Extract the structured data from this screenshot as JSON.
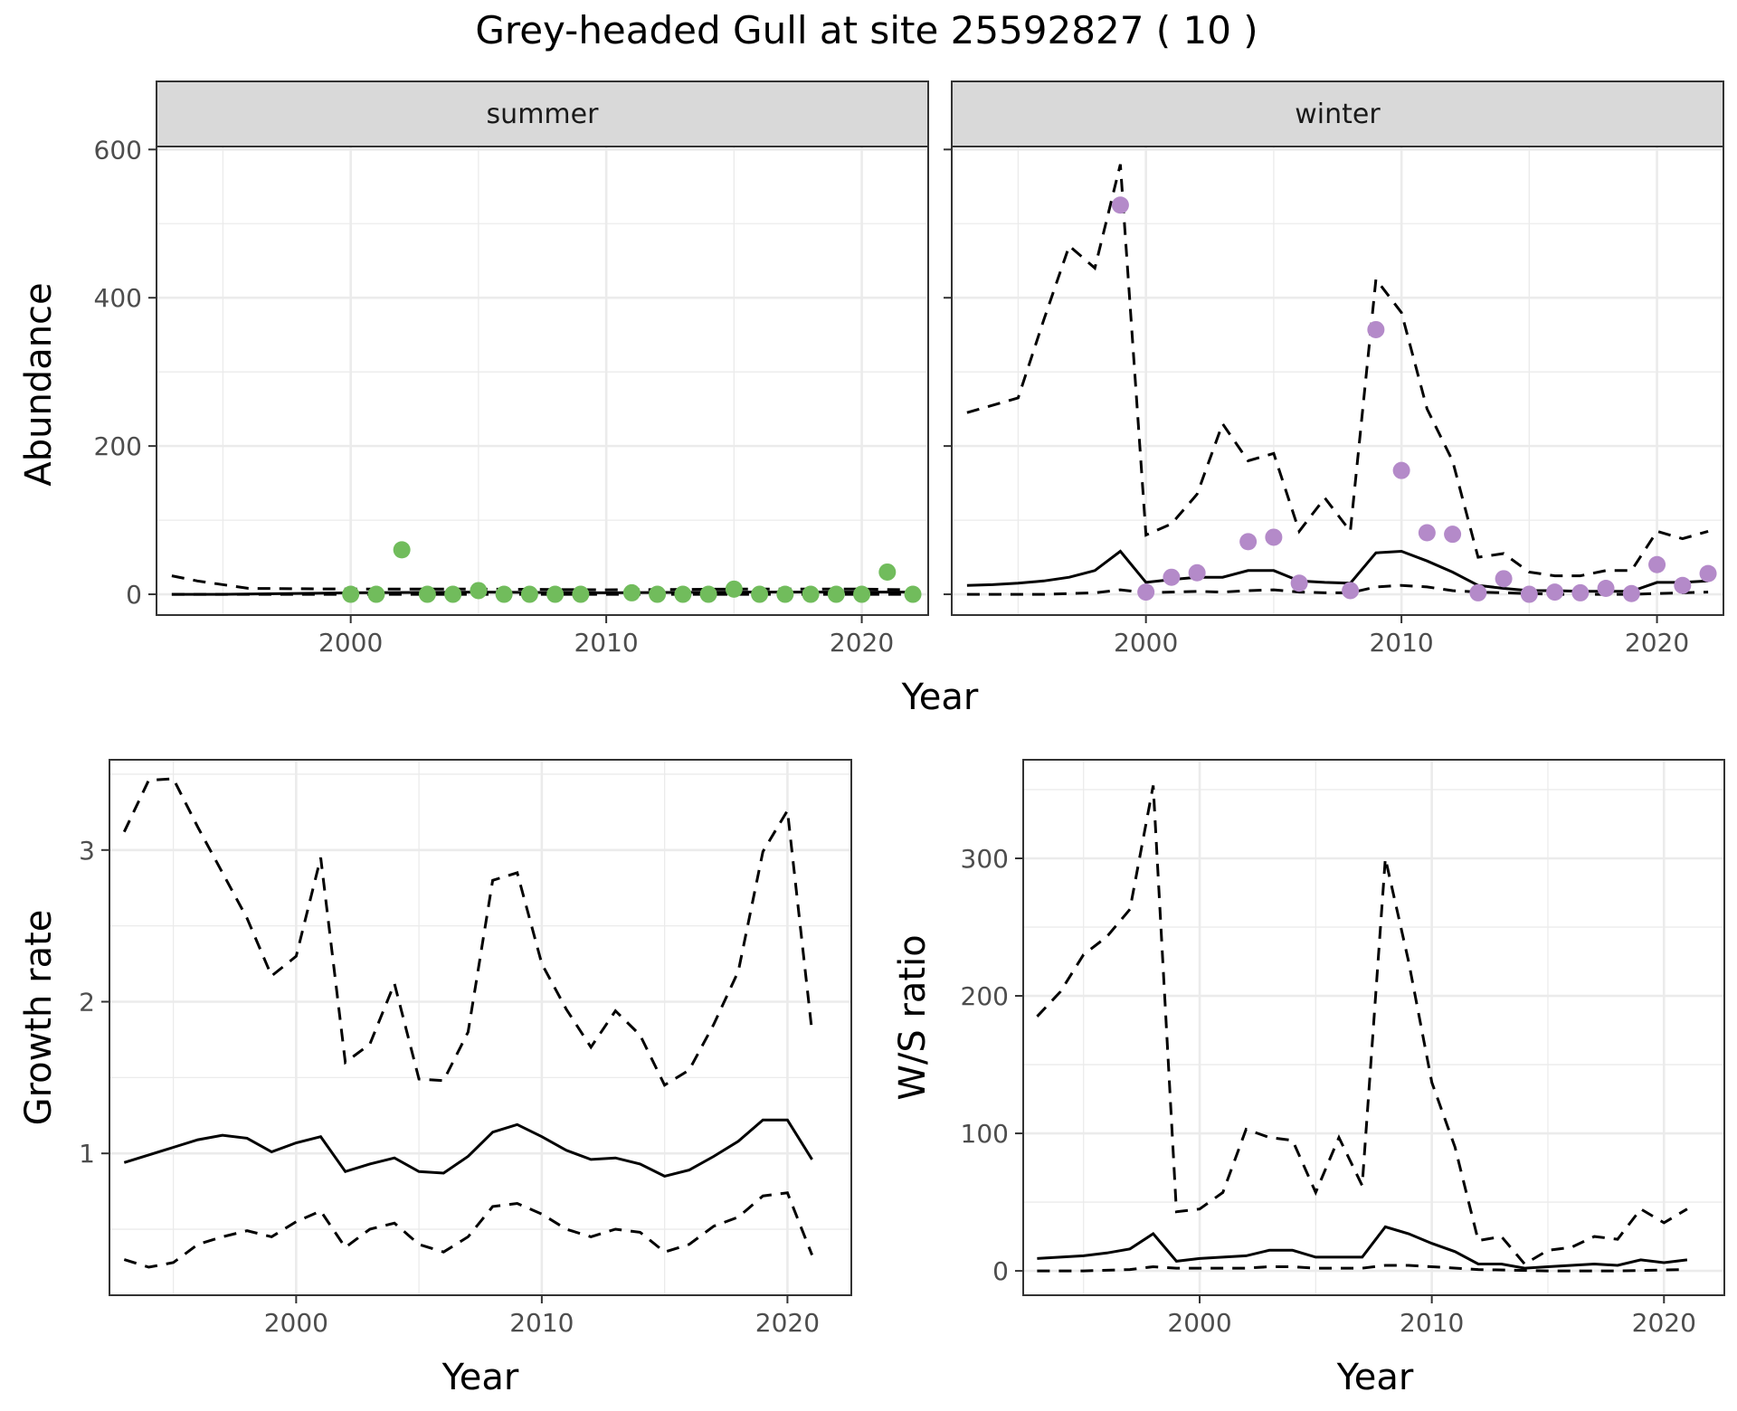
{
  "title": "Grey-headed Gull at site 25592827 ( 10 )",
  "colors": {
    "summer_points": "#71bc5c",
    "winter_points": "#b48ac9",
    "strip_bg": "#d9d9d9"
  },
  "chart_data": [
    {
      "panel": "summer",
      "type": "line",
      "strip_label": "summer",
      "ylabel": "Abundance",
      "xlabel": "Year",
      "xlim": [
        1992.4,
        2022.6
      ],
      "ylim": [
        -28,
        604
      ],
      "xticks": [
        2000,
        2010,
        2020
      ],
      "yticks": [
        0,
        200,
        400,
        600
      ],
      "grid": true,
      "series": [
        {
          "role": "estimate",
          "style": "solid",
          "x": [
            1993,
            1995,
            2000,
            2005,
            2010,
            2015,
            2020,
            2022
          ],
          "y": [
            0,
            0,
            2,
            3,
            2,
            3,
            3,
            3
          ]
        },
        {
          "role": "upper",
          "style": "dashed",
          "x": [
            1993,
            1994,
            1996,
            2000,
            2005,
            2010,
            2015,
            2020,
            2022
          ],
          "y": [
            25,
            18,
            8,
            7,
            7,
            6,
            7,
            7,
            6
          ]
        },
        {
          "role": "lower",
          "style": "dashed",
          "x": [
            1993,
            2000,
            2010,
            2020,
            2022
          ],
          "y": [
            0,
            0,
            0,
            0,
            0
          ]
        },
        {
          "role": "observed",
          "style": "points",
          "x": [
            2000,
            2001,
            2002,
            2003,
            2004,
            2005,
            2006,
            2007,
            2008,
            2009,
            2011,
            2012,
            2013,
            2014,
            2015,
            2016,
            2017,
            2018,
            2019,
            2020,
            2021,
            2022
          ],
          "y": [
            0,
            0,
            60,
            0,
            0,
            5,
            0,
            0,
            0,
            0,
            2,
            0,
            0,
            0,
            7,
            0,
            0,
            0,
            0,
            0,
            30,
            0
          ]
        }
      ]
    },
    {
      "panel": "winter",
      "type": "line",
      "strip_label": "winter",
      "ylabel": "Abundance",
      "xlabel": "Year",
      "xlim": [
        1992.4,
        2022.6
      ],
      "ylim": [
        -28,
        604
      ],
      "xticks": [
        2000,
        2010,
        2020
      ],
      "yticks": [
        0,
        200,
        400,
        600
      ],
      "grid": true,
      "series": [
        {
          "role": "estimate",
          "style": "solid",
          "x": [
            1993,
            1994,
            1995,
            1996,
            1997,
            1998,
            1999,
            2000,
            2001,
            2002,
            2003,
            2004,
            2005,
            2006,
            2007,
            2008,
            2009,
            2010,
            2011,
            2012,
            2013,
            2014,
            2015,
            2016,
            2017,
            2018,
            2019,
            2020,
            2021,
            2022
          ],
          "y": [
            12,
            13,
            15,
            18,
            23,
            32,
            58,
            16,
            20,
            23,
            23,
            32,
            32,
            18,
            16,
            15,
            56,
            58,
            45,
            30,
            12,
            8,
            5,
            5,
            4,
            4,
            4,
            16,
            16,
            18
          ]
        },
        {
          "role": "upper",
          "style": "dashed",
          "x": [
            1993,
            1995,
            1996,
            1997,
            1998,
            1999,
            2000,
            2001,
            2002,
            2003,
            2004,
            2005,
            2006,
            2007,
            2008,
            2009,
            2010,
            2011,
            2012,
            2013,
            2014,
            2015,
            2016,
            2017,
            2018,
            2019,
            2020,
            2021,
            2022
          ],
          "y": [
            245,
            265,
            370,
            470,
            440,
            580,
            80,
            95,
            135,
            230,
            180,
            190,
            85,
            130,
            85,
            425,
            380,
            250,
            180,
            50,
            55,
            30,
            25,
            25,
            32,
            32,
            85,
            75,
            85
          ]
        },
        {
          "role": "lower",
          "style": "dashed",
          "x": [
            1993,
            1996,
            1998,
            1999,
            2000,
            2002,
            2003,
            2004,
            2005,
            2006,
            2007,
            2008,
            2009,
            2010,
            2011,
            2012,
            2013,
            2014,
            2015,
            2016,
            2017,
            2018,
            2019,
            2020,
            2021,
            2022
          ],
          "y": [
            0,
            0,
            2,
            6,
            2,
            4,
            3,
            5,
            6,
            3,
            2,
            2,
            10,
            12,
            10,
            5,
            3,
            2,
            1,
            0,
            0,
            0,
            0,
            1,
            2,
            3
          ]
        },
        {
          "role": "observed",
          "style": "points",
          "x": [
            1999,
            2000,
            2001,
            2002,
            2004,
            2005,
            2006,
            2008,
            2009,
            2010,
            2011,
            2012,
            2013,
            2014,
            2015,
            2016,
            2017,
            2018,
            2019,
            2020,
            2021,
            2022
          ],
          "y": [
            525,
            3,
            23,
            29,
            71,
            77,
            15,
            5,
            357,
            167,
            83,
            81,
            2,
            21,
            0,
            3,
            2,
            8,
            1,
            40,
            12,
            28
          ]
        }
      ]
    },
    {
      "panel": "growth",
      "type": "line",
      "ylabel": "Growth rate",
      "xlabel": "Year",
      "xlim": [
        1992.4,
        2022.6
      ],
      "ylim": [
        0.065,
        3.595
      ],
      "xticks": [
        2000,
        2010,
        2020
      ],
      "yticks": [
        1,
        2,
        3
      ],
      "grid": true,
      "series": [
        {
          "role": "estimate",
          "style": "solid",
          "x": [
            1993,
            1994,
            1995,
            1996,
            1997,
            1998,
            1999,
            2000,
            2001,
            2002,
            2003,
            2004,
            2005,
            2006,
            2007,
            2008,
            2009,
            2010,
            2011,
            2012,
            2013,
            2014,
            2015,
            2016,
            2017,
            2018,
            2019,
            2020,
            2021
          ],
          "y": [
            0.94,
            0.99,
            1.04,
            1.09,
            1.12,
            1.1,
            1.01,
            1.07,
            1.11,
            0.88,
            0.93,
            0.97,
            0.88,
            0.87,
            0.98,
            1.14,
            1.19,
            1.11,
            1.02,
            0.96,
            0.97,
            0.93,
            0.85,
            0.89,
            0.98,
            1.08,
            1.22,
            1.22,
            0.96
          ]
        },
        {
          "role": "upper",
          "style": "dashed",
          "x": [
            1993,
            1994,
            1995,
            1996,
            1997,
            1998,
            1999,
            2000,
            2001,
            2002,
            2003,
            2004,
            2005,
            2006,
            2007,
            2008,
            2009,
            2010,
            2011,
            2012,
            2013,
            2014,
            2015,
            2016,
            2017,
            2018,
            2019,
            2020,
            2021
          ],
          "y": [
            3.12,
            3.46,
            3.47,
            3.15,
            2.85,
            2.55,
            2.17,
            2.3,
            2.95,
            1.6,
            1.72,
            2.12,
            1.49,
            1.48,
            1.8,
            2.8,
            2.85,
            2.25,
            1.95,
            1.7,
            1.94,
            1.78,
            1.45,
            1.55,
            1.85,
            2.2,
            2.99,
            3.26,
            1.8
          ]
        },
        {
          "role": "lower",
          "style": "dashed",
          "x": [
            1993,
            1994,
            1995,
            1996,
            1997,
            1998,
            1999,
            2000,
            2001,
            2002,
            2003,
            2004,
            2005,
            2006,
            2007,
            2008,
            2009,
            2010,
            2011,
            2012,
            2013,
            2014,
            2015,
            2016,
            2017,
            2018,
            2019,
            2020,
            2021
          ],
          "y": [
            0.3,
            0.25,
            0.28,
            0.4,
            0.45,
            0.49,
            0.45,
            0.55,
            0.62,
            0.38,
            0.5,
            0.54,
            0.4,
            0.35,
            0.45,
            0.65,
            0.67,
            0.6,
            0.5,
            0.45,
            0.5,
            0.48,
            0.35,
            0.4,
            0.52,
            0.58,
            0.72,
            0.74,
            0.33
          ]
        }
      ]
    },
    {
      "panel": "ratio",
      "type": "line",
      "ylabel": "W/S ratio",
      "xlabel": "Year",
      "xlim": [
        1992.4,
        2022.6
      ],
      "ylim": [
        -17.7,
        371.7
      ],
      "xticks": [
        2000,
        2010,
        2020
      ],
      "yticks": [
        0,
        100,
        200,
        300
      ],
      "grid": true,
      "series": [
        {
          "role": "estimate",
          "style": "solid",
          "x": [
            1993,
            1994,
            1995,
            1996,
            1997,
            1998,
            1999,
            2000,
            2001,
            2002,
            2003,
            2004,
            2005,
            2006,
            2007,
            2008,
            2009,
            2010,
            2011,
            2012,
            2013,
            2014,
            2015,
            2016,
            2017,
            2018,
            2019,
            2020,
            2021
          ],
          "y": [
            9,
            10,
            11,
            13,
            16,
            27,
            7,
            9,
            10,
            11,
            15,
            15,
            10,
            10,
            10,
            32,
            27,
            20,
            14,
            5,
            5,
            2,
            3,
            4,
            5,
            4,
            8,
            6,
            8
          ]
        },
        {
          "role": "upper",
          "style": "dashed",
          "x": [
            1993,
            1994,
            1995,
            1996,
            1997,
            1998,
            1999,
            2000,
            2001,
            2002,
            2003,
            2004,
            2005,
            2006,
            2007,
            2008,
            2009,
            2010,
            2011,
            2012,
            2013,
            2014,
            2015,
            2016,
            2017,
            2018,
            2019,
            2020,
            2021
          ],
          "y": [
            185,
            203,
            230,
            243,
            263,
            353,
            43,
            45,
            57,
            103,
            97,
            95,
            57,
            97,
            62,
            300,
            225,
            137,
            90,
            22,
            25,
            5,
            15,
            17,
            25,
            23,
            45,
            35,
            45
          ]
        },
        {
          "role": "lower",
          "style": "dashed",
          "x": [
            1993,
            1995,
            1997,
            1998,
            1999,
            2002,
            2003,
            2004,
            2005,
            2006,
            2007,
            2008,
            2009,
            2010,
            2012,
            2015,
            2018,
            2021
          ],
          "y": [
            0,
            0,
            1,
            3,
            2,
            2,
            3,
            3,
            2,
            2,
            2,
            4,
            4,
            3,
            1,
            0,
            0,
            1
          ]
        }
      ]
    }
  ]
}
